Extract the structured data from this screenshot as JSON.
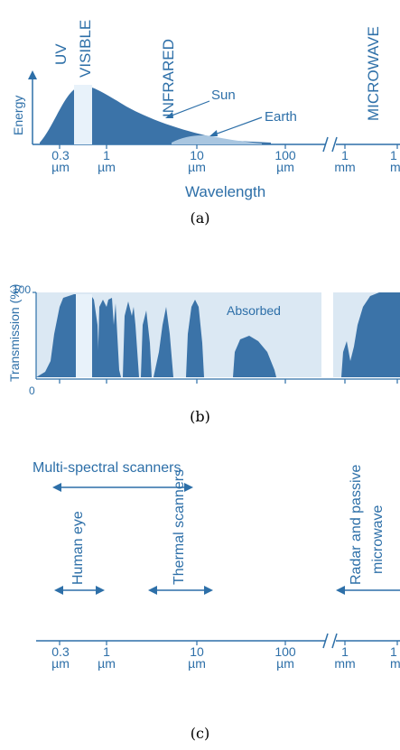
{
  "colors": {
    "blue": "#2d6fa8",
    "light": "#e8f2fa",
    "absorbed": "#dbe8f3",
    "dark": "#3b73a8"
  },
  "panel_a": {
    "bands": [
      "UV",
      "VISIBLE",
      "INFRARED",
      "MICROWAVE"
    ],
    "y_label": "Energy",
    "sun_label": "Sun",
    "earth_label": "Earth",
    "ticks": [
      {
        "top": "0.3",
        "bottom": "µm"
      },
      {
        "top": "1",
        "bottom": "µm"
      },
      {
        "top": "10",
        "bottom": "µm"
      },
      {
        "top": "100",
        "bottom": "µm"
      },
      {
        "top": "1",
        "bottom": "mm"
      },
      {
        "top": "1",
        "bottom": "m"
      }
    ],
    "x_label": "Wavelength",
    "caption": "(a)"
  },
  "panel_b": {
    "y_label": "Transmission (%)",
    "y_100": "100",
    "y_0": "0",
    "absorbed_label": "Absorbed",
    "caption": "(b)"
  },
  "panel_c": {
    "multispectral": "Multi-spectral scanners",
    "human_eye": "Human eye",
    "thermal": "Thermal scanners",
    "radar_line1": "Radar and passive",
    "radar_line2": "microwave",
    "ticks": [
      {
        "top": "0.3",
        "bottom": "µm"
      },
      {
        "top": "1",
        "bottom": "µm"
      },
      {
        "top": "10",
        "bottom": "µm"
      },
      {
        "top": "100",
        "bottom": "µm"
      },
      {
        "top": "1",
        "bottom": "mm"
      },
      {
        "top": "1",
        "bottom": "m"
      }
    ],
    "caption": "(c)"
  }
}
